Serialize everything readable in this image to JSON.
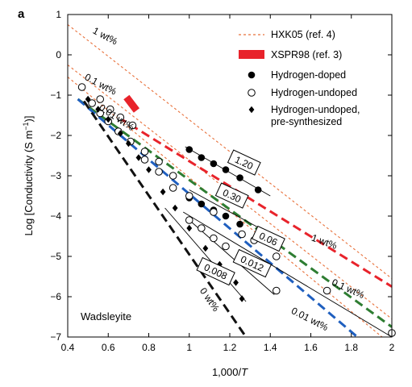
{
  "panel_label": "a",
  "region_label": "Wadsleyite",
  "chart_data": {
    "type": "scatter",
    "xlabel_main": "1,000/",
    "xlabel_italic": "T",
    "ylabel_main": "Log [Conductivity (S m",
    "ylabel_sup": "−1",
    "ylabel_end": ")]",
    "xlim": [
      0.4,
      2.0
    ],
    "ylim": [
      -7,
      1
    ],
    "xticks": [
      0.4,
      0.6,
      0.8,
      1.0,
      1.2,
      1.4,
      1.6,
      1.8,
      2.0
    ],
    "xtick_labels": [
      "0.4",
      "0.6",
      "0.8",
      "1",
      "1.2",
      "1.4",
      "1.6",
      "1.8",
      "2"
    ],
    "yticks": [
      1,
      0,
      -1,
      -2,
      -3,
      -4,
      -5,
      -6,
      -7
    ],
    "ytick_labels": [
      "1",
      "0",
      "−1",
      "−2",
      "−3",
      "−4",
      "−5",
      "−6",
      "−7"
    ],
    "grid": false,
    "legend_position": "top-right",
    "legend": [
      {
        "label": "HXK05 (ref. 4)",
        "symbol": "dashed-line",
        "color": "#e8703a"
      },
      {
        "label": "XSPR98 (ref. 3)",
        "symbol": "thick-bar",
        "color": "#e8232b"
      },
      {
        "label": "Hydrogen-doped",
        "symbol": "filled-circle",
        "color": "#000000"
      },
      {
        "label": "Hydrogen-undoped",
        "symbol": "open-circle",
        "color": "#000000"
      },
      {
        "label": "Hydrogen-undoped,",
        "label2": "pre-synthesized",
        "symbol": "filled-diamond",
        "color": "#000000"
      }
    ],
    "hxk05_lines": [
      {
        "label": "1 wt%",
        "x": [
          0.4,
          2.0
        ],
        "y": [
          0.75,
          -5.55
        ]
      },
      {
        "label": "0.1 wt%",
        "x": [
          0.4,
          2.0
        ],
        "y": [
          -0.25,
          -6.55
        ]
      },
      {
        "label": "0.01 wt%",
        "x": [
          0.4,
          2.0
        ],
        "y": [
          -0.55,
          -7.2
        ]
      }
    ],
    "xspr98": {
      "x": [
        0.69,
        0.74
      ],
      "y": [
        -1.05,
        -1.38
      ]
    },
    "model_lines": [
      {
        "name": "1 wt%",
        "color": "#e8232b",
        "x": [
          0.65,
          2.0
        ],
        "y": [
          -1.55,
          -5.75
        ],
        "label_x": 1.6,
        "label_y": -4.6,
        "rotate": 20
      },
      {
        "name": "0.1 wt%",
        "color": "#2e7d32",
        "x": [
          0.45,
          2.0
        ],
        "y": [
          -1.1,
          -6.75
        ],
        "label_x": 1.7,
        "label_y": -5.7,
        "rotate": 24
      },
      {
        "name": "0.01 wt%",
        "color": "#1f5fbf",
        "x": [
          0.45,
          1.83
        ],
        "y": [
          -1.1,
          -7.0
        ],
        "label_x": 1.5,
        "label_y": -6.4,
        "rotate": 27
      },
      {
        "name": "0 wt%",
        "color": "#111111",
        "x": [
          0.48,
          1.28
        ],
        "y": [
          -1.15,
          -7.0
        ],
        "label_x": 1.05,
        "label_y": -5.85,
        "rotate": 55
      }
    ],
    "fit_lines": [
      {
        "box": "1.20",
        "x": [
          0.98,
          1.4
        ],
        "y": [
          -2.28,
          -3.5
        ],
        "box_x": 1.27,
        "box_y": -2.68
      },
      {
        "box": "0.30",
        "x": [
          1.0,
          1.42
        ],
        "y": [
          -3.35,
          -4.5
        ],
        "box_x": 1.21,
        "box_y": -3.5
      },
      {
        "box": "0.06",
        "x": [
          0.97,
          2.0
        ],
        "y": [
          -3.9,
          -7.0
        ],
        "box_x": 1.39,
        "box_y": -4.57
      },
      {
        "box": "0.012",
        "x": [
          1.0,
          1.42
        ],
        "y": [
          -4.1,
          -5.95
        ],
        "box_x": 1.31,
        "box_y": -5.18
      },
      {
        "box": "0.008",
        "x": [
          0.88,
          1.28
        ],
        "y": [
          -3.8,
          -6.12
        ],
        "box_x": 1.13,
        "box_y": -5.38
      }
    ],
    "series": [
      {
        "name": "Hydrogen-doped",
        "marker": "filled-circle",
        "x": [
          1.0,
          1.06,
          1.12,
          1.18,
          1.25,
          1.34,
          1.0,
          1.06,
          1.12,
          1.18,
          1.25,
          1.34
        ],
        "y": [
          -2.35,
          -2.55,
          -2.7,
          -2.85,
          -3.05,
          -3.35,
          -3.55,
          -3.7,
          -3.85,
          -4.0,
          -4.2,
          -4.45
        ]
      },
      {
        "name": "Hydrogen-undoped",
        "marker": "open-circle",
        "x": [
          0.47,
          0.52,
          0.56,
          0.6,
          0.65,
          0.71,
          0.78,
          0.85,
          0.92,
          1.0,
          1.12,
          1.26,
          1.32,
          1.43,
          1.68,
          2.0,
          1.0,
          1.06,
          1.12,
          1.18,
          1.25,
          1.34,
          1.43,
          0.56,
          0.61,
          0.66,
          0.72,
          0.78,
          0.85,
          0.92
        ],
        "y": [
          -0.8,
          -1.2,
          -1.45,
          -1.65,
          -1.9,
          -2.15,
          -2.4,
          -2.65,
          -3.0,
          -3.5,
          -3.9,
          -4.45,
          -4.6,
          -5.0,
          -5.85,
          -6.9,
          -4.1,
          -4.3,
          -4.55,
          -4.75,
          -5.0,
          -5.3,
          -5.85,
          -1.1,
          -1.35,
          -1.55,
          -1.75,
          -2.6,
          -2.9,
          -3.3
        ]
      },
      {
        "name": "Hydrogen-undoped, pre-synthesized",
        "marker": "filled-diamond",
        "x": [
          0.5,
          0.55,
          0.6,
          0.66,
          0.7,
          0.75,
          0.8,
          0.87,
          0.93,
          1.0,
          1.08,
          1.15,
          1.23,
          1.26
        ],
        "y": [
          -1.1,
          -1.35,
          -1.6,
          -1.95,
          -2.2,
          -2.55,
          -2.85,
          -3.4,
          -3.8,
          -4.3,
          -4.8,
          -5.2,
          -5.65,
          -6.05
        ]
      }
    ]
  }
}
